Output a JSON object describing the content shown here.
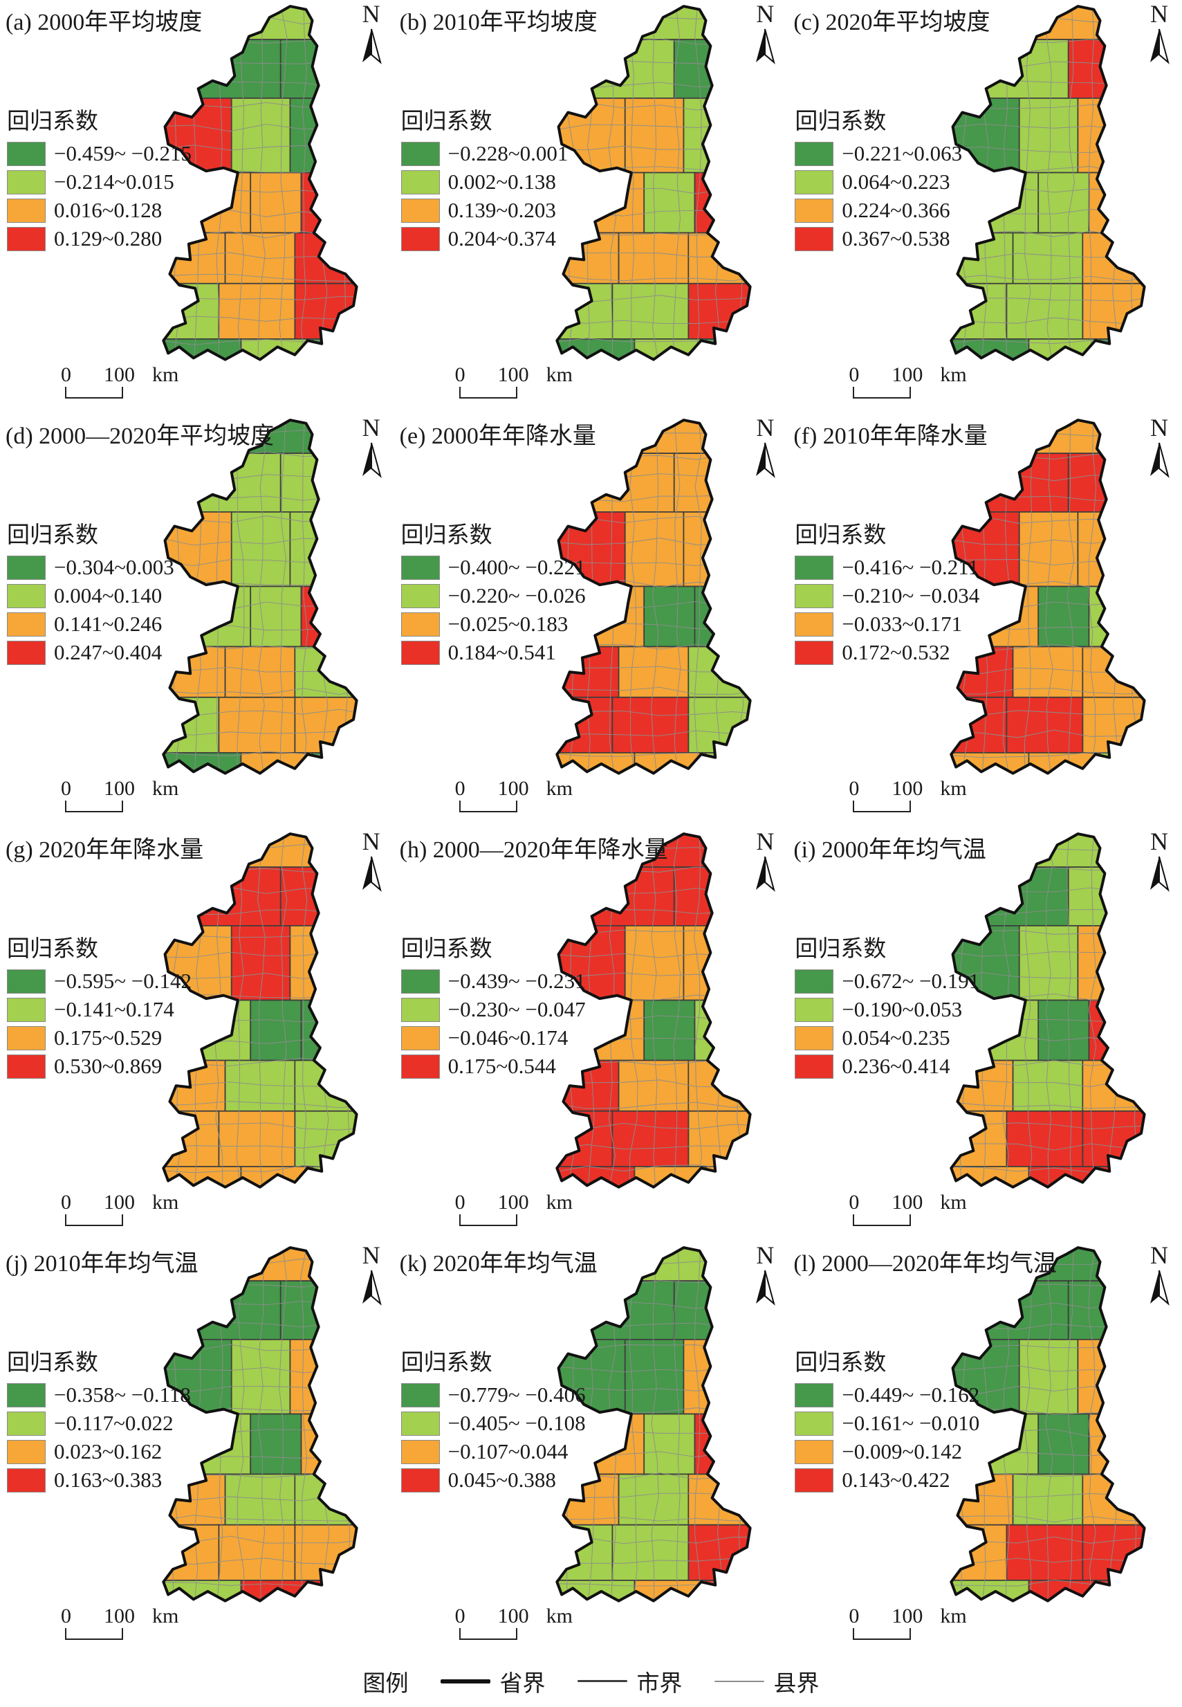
{
  "figure": {
    "legend_title": "回归系数",
    "north_label": "N",
    "scale_bar": {
      "zero": "0",
      "hundred": "100",
      "unit": "km"
    }
  },
  "palette": {
    "classes": [
      "#46984b",
      "#a3d04e",
      "#f6a737",
      "#e93128"
    ],
    "boundaries": {
      "province": "#111111",
      "city": "#3d3d3d",
      "county": "#8d8d8d"
    },
    "background": "#ffffff"
  },
  "footer": {
    "title": "图例",
    "items": [
      {
        "label": "省界",
        "kind": "province-boundary"
      },
      {
        "label": "市界",
        "kind": "city-boundary"
      },
      {
        "label": "县界",
        "kind": "county-boundary"
      }
    ]
  },
  "panels": [
    {
      "id": "a",
      "title": "(a) 2000年平均坡度",
      "classes": [
        "−0.459~ −0.215",
        "−0.214~0.015",
        "0.016~0.128",
        "0.129~0.280"
      ],
      "zones": [
        1,
        0,
        0,
        3,
        1,
        0,
        2,
        2,
        3,
        2,
        2,
        3,
        3,
        1,
        2,
        0,
        1,
        0
      ]
    },
    {
      "id": "b",
      "title": "(b) 2010年平均坡度",
      "classes": [
        "−0.228~0.001",
        "0.002~0.138",
        "0.139~0.203",
        "0.204~0.374"
      ],
      "zones": [
        1,
        1,
        0,
        2,
        2,
        1,
        2,
        1,
        3,
        2,
        2,
        2,
        3,
        1,
        1,
        0,
        1,
        0
      ]
    },
    {
      "id": "c",
      "title": "(c) 2020年平均坡度",
      "classes": [
        "−0.221~0.063",
        "0.064~0.223",
        "0.224~0.366",
        "0.367~0.538"
      ],
      "zones": [
        2,
        1,
        3,
        0,
        1,
        2,
        1,
        1,
        2,
        1,
        1,
        2,
        2,
        1,
        1,
        0,
        1,
        0
      ]
    },
    {
      "id": "d",
      "title": "(d) 2000—2020年平均坡度",
      "classes": [
        "−0.304~0.003",
        "0.004~0.140",
        "0.141~0.246",
        "0.247~0.404"
      ],
      "zones": [
        0,
        1,
        1,
        2,
        1,
        1,
        1,
        1,
        3,
        2,
        2,
        1,
        2,
        1,
        2,
        0,
        2,
        0
      ]
    },
    {
      "id": "e",
      "title": "(e) 2000年年降水量",
      "classes": [
        "−0.400~ −0.221",
        "−0.220~ −0.026",
        "−0.025~0.183",
        "0.184~0.541"
      ],
      "zones": [
        2,
        2,
        2,
        3,
        2,
        2,
        2,
        0,
        0,
        3,
        2,
        1,
        1,
        3,
        3,
        2,
        2,
        1
      ]
    },
    {
      "id": "f",
      "title": "(f) 2010年年降水量",
      "classes": [
        "−0.416~ −0.211",
        "−0.210~ −0.034",
        "−0.033~0.171",
        "0.172~0.532"
      ],
      "zones": [
        2,
        3,
        3,
        3,
        2,
        2,
        2,
        0,
        1,
        3,
        2,
        2,
        2,
        3,
        3,
        2,
        2,
        1
      ]
    },
    {
      "id": "g",
      "title": "(g) 2020年年降水量",
      "classes": [
        "−0.595~ −0.142",
        "−0.141~0.174",
        "0.175~0.529",
        "0.530~0.869"
      ],
      "zones": [
        2,
        3,
        3,
        2,
        3,
        2,
        1,
        0,
        0,
        2,
        1,
        1,
        1,
        2,
        2,
        2,
        2,
        1
      ]
    },
    {
      "id": "h",
      "title": "(h) 2000—2020年年降水量",
      "classes": [
        "−0.439~ −0.231",
        "−0.230~ −0.047",
        "−0.046~0.174",
        "0.175~0.544"
      ],
      "zones": [
        3,
        3,
        3,
        3,
        2,
        2,
        2,
        0,
        1,
        3,
        2,
        2,
        2,
        3,
        3,
        3,
        2,
        2
      ]
    },
    {
      "id": "i",
      "title": "(i) 2000年年均气温",
      "classes": [
        "−0.672~ −0.191",
        "−0.190~0.053",
        "0.054~0.235",
        "0.236~0.414"
      ],
      "zones": [
        1,
        0,
        1,
        0,
        1,
        2,
        1,
        0,
        3,
        2,
        1,
        2,
        3,
        2,
        3,
        2,
        3,
        3
      ]
    },
    {
      "id": "j",
      "title": "(j) 2010年年均气温",
      "classes": [
        "−0.358~ −0.118",
        "−0.117~0.022",
        "0.023~0.162",
        "0.163~0.383"
      ],
      "zones": [
        2,
        0,
        0,
        0,
        1,
        2,
        1,
        0,
        2,
        2,
        1,
        1,
        2,
        2,
        2,
        1,
        3,
        3
      ]
    },
    {
      "id": "k",
      "title": "(k) 2020年年均气温",
      "classes": [
        "−0.779~ −0.406",
        "−0.405~ −0.108",
        "−0.107~0.044",
        "0.045~0.388"
      ],
      "zones": [
        1,
        0,
        0,
        0,
        0,
        2,
        2,
        1,
        3,
        2,
        1,
        2,
        3,
        1,
        1,
        1,
        2,
        3
      ]
    },
    {
      "id": "l",
      "title": "(l) 2000—2020年年均气温",
      "classes": [
        "−0.449~ −0.162",
        "−0.161~ −0.010",
        "−0.009~0.142",
        "0.143~0.422"
      ],
      "zones": [
        0,
        0,
        0,
        0,
        1,
        2,
        1,
        0,
        2,
        2,
        1,
        2,
        3,
        2,
        3,
        1,
        3,
        3
      ]
    }
  ]
}
